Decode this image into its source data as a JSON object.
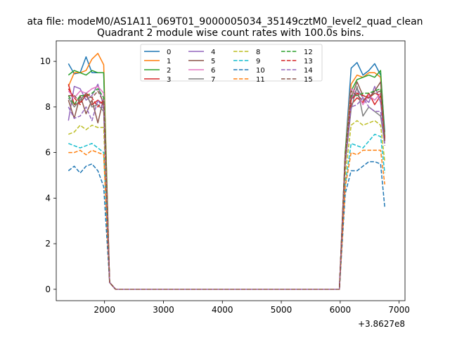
{
  "chart_data": {
    "type": "line",
    "suptitle": "ata file: modeM0/AS1A11_069T01_9000005034_35149cztM0_level2_quad_clean",
    "title": "Quadrant 2 module wise count rates with 100.0s bins.",
    "xlabel": "",
    "ylabel": "",
    "x_offset_label": "+3.8627e8",
    "xlim": [
      1180,
      7100
    ],
    "ylim": [
      -0.5,
      10.9
    ],
    "xticks": [
      "2000",
      "3000",
      "4000",
      "5000",
      "6000",
      "7000"
    ],
    "yticks": [
      "0",
      "2",
      "4",
      "6",
      "8",
      "10"
    ],
    "grid": false,
    "legend": {
      "placement": "top-center",
      "columns": 4
    },
    "x_seg1": [
      1386,
      1486,
      1586,
      1686,
      1786,
      1886,
      1986,
      2086,
      2186
    ],
    "x_seg2": [
      5986,
      6086,
      6186,
      6286,
      6386,
      6486,
      6586,
      6686,
      6756
    ],
    "series": [
      {
        "name": "0",
        "color": "#1f77b4",
        "dash": false,
        "seg1": [
          9.9,
          9.45,
          9.5,
          10.2,
          9.5,
          9.5,
          9.5,
          0.3,
          0
        ],
        "seg2": [
          0,
          6.0,
          9.7,
          9.95,
          9.4,
          9.6,
          9.9,
          9.4,
          6.9
        ]
      },
      {
        "name": "1",
        "color": "#ff7f0e",
        "dash": false,
        "seg1": [
          8.9,
          9.5,
          9.5,
          9.6,
          10.1,
          10.35,
          9.85,
          0.3,
          0
        ],
        "seg2": [
          0,
          6.0,
          9.0,
          9.4,
          9.3,
          9.5,
          9.5,
          9.3,
          6.6
        ]
      },
      {
        "name": "2",
        "color": "#2ca02c",
        "dash": false,
        "seg1": [
          9.4,
          9.6,
          9.5,
          9.4,
          9.6,
          9.5,
          9.5,
          0.3,
          0
        ],
        "seg2": [
          0,
          6.0,
          8.7,
          9.2,
          9.3,
          9.4,
          9.3,
          9.6,
          6.7
        ]
      },
      {
        "name": "3",
        "color": "#d62728",
        "dash": false,
        "seg1": [
          9.0,
          8.1,
          8.2,
          8.5,
          8.1,
          8.3,
          8.1,
          0.3,
          0
        ],
        "seg2": [
          0,
          5.8,
          8.1,
          8.4,
          8.2,
          8.6,
          8.1,
          8.5,
          6.6
        ]
      },
      {
        "name": "4",
        "color": "#9467bd",
        "dash": false,
        "seg1": [
          7.4,
          8.9,
          8.8,
          8.3,
          8.5,
          9.0,
          8.0,
          0.3,
          0
        ],
        "seg2": [
          0,
          5.7,
          8.3,
          8.8,
          8.4,
          8.2,
          8.9,
          8.2,
          6.5
        ]
      },
      {
        "name": "5",
        "color": "#8c564b",
        "dash": false,
        "seg1": [
          8.3,
          7.5,
          8.5,
          7.7,
          8.3,
          7.3,
          8.4,
          0.3,
          0
        ],
        "seg2": [
          0,
          5.6,
          8.4,
          9.1,
          8.5,
          8.4,
          8.7,
          9.1,
          6.6
        ]
      },
      {
        "name": "6",
        "color": "#e377c2",
        "dash": false,
        "seg1": [
          8.7,
          8.4,
          8.7,
          8.6,
          8.8,
          8.9,
          8.6,
          0.3,
          0
        ],
        "seg2": [
          0,
          5.7,
          8.8,
          8.6,
          8.1,
          8.5,
          8.3,
          8.6,
          6.5
        ]
      },
      {
        "name": "7",
        "color": "#7f7f7f",
        "dash": false,
        "seg1": [
          8.4,
          8.0,
          8.3,
          8.6,
          8.0,
          8.1,
          7.8,
          0.3,
          0
        ],
        "seg2": [
          0,
          5.5,
          7.9,
          8.9,
          7.6,
          8.0,
          7.8,
          7.6,
          6.4
        ]
      },
      {
        "name": "8",
        "color": "#bcbd22",
        "dash": true,
        "seg1": [
          6.8,
          6.9,
          7.2,
          7.0,
          7.2,
          7.1,
          7.1,
          0.3,
          0
        ],
        "seg2": [
          0,
          5.0,
          7.2,
          7.4,
          7.2,
          7.3,
          7.4,
          7.2,
          5.6
        ]
      },
      {
        "name": "9",
        "color": "#17becf",
        "dash": true,
        "seg1": [
          6.4,
          6.3,
          6.2,
          6.3,
          6.4,
          6.2,
          6.0,
          0.3,
          0
        ],
        "seg2": [
          0,
          4.6,
          6.4,
          6.3,
          6.2,
          6.5,
          6.8,
          6.7,
          5.1
        ]
      },
      {
        "name": "10",
        "color": "#1f77b4",
        "dash": true,
        "seg1": [
          5.2,
          5.4,
          5.1,
          5.4,
          5.5,
          5.2,
          4.5,
          0.3,
          0
        ],
        "seg2": [
          0,
          4.2,
          5.2,
          5.2,
          5.4,
          5.6,
          5.6,
          5.5,
          3.6
        ]
      },
      {
        "name": "11",
        "color": "#ff7f0e",
        "dash": true,
        "seg1": [
          6.0,
          6.0,
          6.1,
          5.9,
          6.1,
          6.0,
          5.9,
          0.3,
          0
        ],
        "seg2": [
          0,
          4.5,
          6.0,
          5.9,
          6.1,
          6.1,
          6.1,
          6.1,
          4.6
        ]
      },
      {
        "name": "12",
        "color": "#2ca02c",
        "dash": true,
        "seg1": [
          8.5,
          8.1,
          8.5,
          8.5,
          8.6,
          8.8,
          8.4,
          0.3,
          0
        ],
        "seg2": [
          0,
          5.9,
          8.5,
          8.5,
          8.6,
          8.6,
          8.7,
          8.8,
          6.6
        ]
      },
      {
        "name": "13",
        "color": "#d62728",
        "dash": true,
        "seg1": [
          8.8,
          8.4,
          8.1,
          8.6,
          8.4,
          8.0,
          8.3,
          0.3,
          0
        ],
        "seg2": [
          0,
          5.8,
          8.3,
          8.6,
          8.5,
          8.4,
          8.6,
          8.5,
          6.6
        ]
      },
      {
        "name": "14",
        "color": "#9467bd",
        "dash": true,
        "seg1": [
          8.0,
          7.5,
          7.6,
          8.0,
          7.4,
          8.3,
          7.9,
          0.3,
          0
        ],
        "seg2": [
          0,
          5.6,
          8.0,
          8.1,
          8.4,
          8.0,
          7.8,
          7.8,
          6.3
        ]
      },
      {
        "name": "15",
        "color": "#8c564b",
        "dash": true,
        "seg1": [
          8.5,
          8.5,
          8.2,
          8.5,
          8.4,
          8.7,
          8.2,
          0.3,
          0
        ],
        "seg2": [
          0,
          5.7,
          8.7,
          8.5,
          8.3,
          8.4,
          8.6,
          8.7,
          6.5
        ]
      }
    ]
  }
}
